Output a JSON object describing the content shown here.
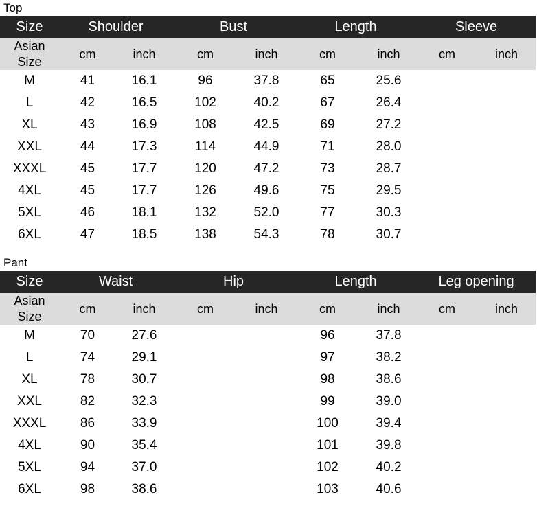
{
  "top": {
    "label": "Top",
    "header": {
      "size": "Size",
      "groups": [
        "Shoulder",
        "Bust",
        "Length",
        "Sleeve"
      ]
    },
    "units": {
      "asian_line1": "Asian",
      "asian_line2": "Size",
      "cm": "cm",
      "inch": "inch"
    },
    "rows": [
      [
        "M",
        "41",
        "16.1",
        "96",
        "37.8",
        "65",
        "25.6",
        "",
        ""
      ],
      [
        "L",
        "42",
        "16.5",
        "102",
        "40.2",
        "67",
        "26.4",
        "",
        ""
      ],
      [
        "XL",
        "43",
        "16.9",
        "108",
        "42.5",
        "69",
        "27.2",
        "",
        ""
      ],
      [
        "XXL",
        "44",
        "17.3",
        "114",
        "44.9",
        "71",
        "28.0",
        "",
        ""
      ],
      [
        "XXXL",
        "45",
        "17.7",
        "120",
        "47.2",
        "73",
        "28.7",
        "",
        ""
      ],
      [
        "4XL",
        "45",
        "17.7",
        "126",
        "49.6",
        "75",
        "29.5",
        "",
        ""
      ],
      [
        "5XL",
        "46",
        "18.1",
        "132",
        "52.0",
        "77",
        "30.3",
        "",
        ""
      ],
      [
        "6XL",
        "47",
        "18.5",
        "138",
        "54.3",
        "78",
        "30.7",
        "",
        ""
      ]
    ]
  },
  "pant": {
    "label": "Pant",
    "header": {
      "size": "Size",
      "groups": [
        "Waist",
        "Hip",
        "Length",
        "Leg opening"
      ]
    },
    "units": {
      "asian_line1": "Asian",
      "asian_line2": "Size",
      "cm": "cm",
      "inch": "inch"
    },
    "rows": [
      [
        "M",
        "70",
        "27.6",
        "",
        "",
        "96",
        "37.8",
        "",
        ""
      ],
      [
        "L",
        "74",
        "29.1",
        "",
        "",
        "97",
        "38.2",
        "",
        ""
      ],
      [
        "XL",
        "78",
        "30.7",
        "",
        "",
        "98",
        "38.6",
        "",
        ""
      ],
      [
        "XXL",
        "82",
        "32.3",
        "",
        "",
        "99",
        "39.0",
        "",
        ""
      ],
      [
        "XXXL",
        "86",
        "33.9",
        "",
        "",
        "100",
        "39.4",
        "",
        ""
      ],
      [
        "4XL",
        "90",
        "35.4",
        "",
        "",
        "101",
        "39.8",
        "",
        ""
      ],
      [
        "5XL",
        "94",
        "37.0",
        "",
        "",
        "102",
        "40.2",
        "",
        ""
      ],
      [
        "6XL",
        "98",
        "38.6",
        "",
        "",
        "103",
        "40.6",
        "",
        ""
      ]
    ]
  },
  "colors": {
    "header_bg": "#262626",
    "header_text": "#ffffff",
    "unit_bg": "#dcdcdc"
  }
}
